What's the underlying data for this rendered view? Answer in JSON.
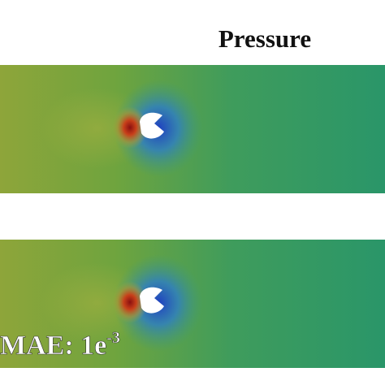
{
  "title": "Pressure",
  "annotation": {
    "text": "MAE: 1e",
    "superscript": "-3"
  }
}
